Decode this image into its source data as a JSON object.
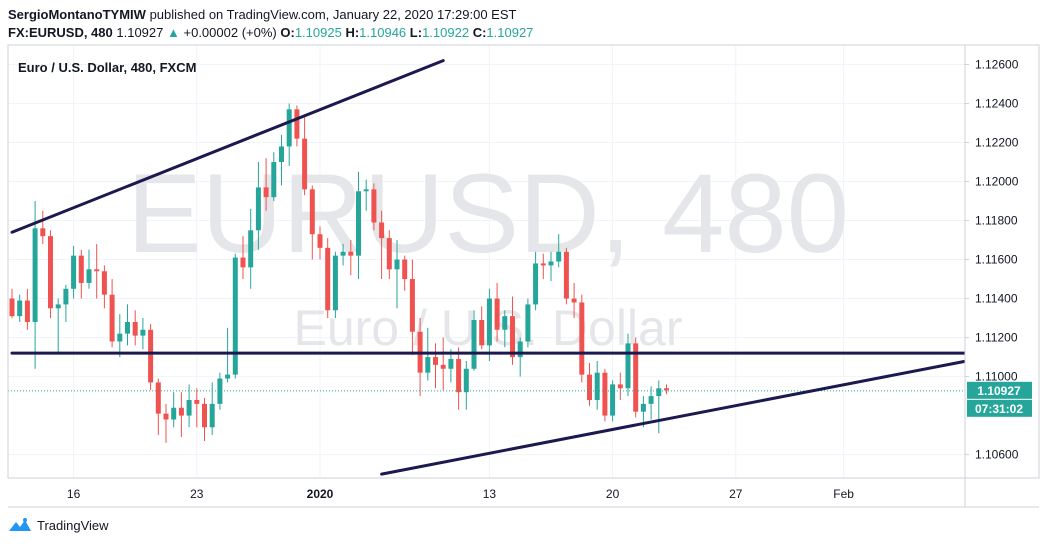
{
  "header": {
    "publisher": "SergioMontanoTYMIW",
    "published_text": "published on TradingView.com, January 22, 2020 17:29:00 EST",
    "symbol": "FX:EURUSD, 480",
    "last": "1.10927",
    "up_arrow": "▲",
    "change": "+0.00002 (+0%)",
    "o_label": "O:",
    "o_value": "1.10925",
    "h_label": "H:",
    "h_value": "1.10946",
    "l_label": "L:",
    "l_value": "1.10922",
    "c_label": "C:",
    "c_value": "1.10927"
  },
  "footer": {
    "brand": "TradingView",
    "logo_icon": "tradingview-logo-icon"
  },
  "colors": {
    "up": "#26a69a",
    "down": "#ef5350",
    "trendline": "#1c1850",
    "grid": "#f0f3fa",
    "axis_text": "#131722",
    "watermark": "#e4e6ea"
  },
  "chart_data": {
    "type": "candlestick",
    "title": "Euro / U.S. Dollar, 480, FXCM",
    "watermark": {
      "line1": "EURUSD, 480",
      "line2": "Euro / U.S. Dollar"
    },
    "y_ticks": [
      "1.12600",
      "1.12400",
      "1.12200",
      "1.12000",
      "1.11800",
      "1.11600",
      "1.11400",
      "1.11200",
      "1.11000",
      "1.10600"
    ],
    "x_ticks": [
      "16",
      "23",
      "2020",
      "13",
      "20",
      "27",
      "Feb"
    ],
    "ylim": [
      1.1048,
      1.127
    ],
    "price_label": "1.10927",
    "countdown_label": "07:31:02",
    "last_price": 1.10927,
    "candles": [
      [
        1.114,
        1.1145,
        1.113,
        1.1131
      ],
      [
        1.1131,
        1.1142,
        1.1128,
        1.1139
      ],
      [
        1.1139,
        1.1145,
        1.1124,
        1.1128
      ],
      [
        1.1128,
        1.119,
        1.1104,
        1.1176
      ],
      [
        1.1176,
        1.1185,
        1.1168,
        1.1172
      ],
      [
        1.1172,
        1.1175,
        1.113,
        1.1135
      ],
      [
        1.1135,
        1.114,
        1.1112,
        1.1137
      ],
      [
        1.1137,
        1.1147,
        1.1128,
        1.1145
      ],
      [
        1.1145,
        1.1167,
        1.114,
        1.1162
      ],
      [
        1.1162,
        1.1165,
        1.114,
        1.1148
      ],
      [
        1.1148,
        1.1165,
        1.1145,
        1.1155
      ],
      [
        1.1155,
        1.1168,
        1.114,
        1.1154
      ],
      [
        1.1154,
        1.1157,
        1.1135,
        1.1142
      ],
      [
        1.1142,
        1.115,
        1.1115,
        1.1118
      ],
      [
        1.1118,
        1.1132,
        1.111,
        1.1122
      ],
      [
        1.1122,
        1.1137,
        1.1116,
        1.1128
      ],
      [
        1.1128,
        1.1134,
        1.1116,
        1.1121
      ],
      [
        1.1121,
        1.113,
        1.1114,
        1.1124
      ],
      [
        1.1124,
        1.1127,
        1.1093,
        1.1097
      ],
      [
        1.1097,
        1.1099,
        1.107,
        1.1081
      ],
      [
        1.1081,
        1.1086,
        1.1066,
        1.1078
      ],
      [
        1.1078,
        1.1092,
        1.1074,
        1.1084
      ],
      [
        1.1084,
        1.1092,
        1.1069,
        1.108
      ],
      [
        1.108,
        1.1096,
        1.1074,
        1.1088
      ],
      [
        1.1088,
        1.1094,
        1.1074,
        1.1086
      ],
      [
        1.1086,
        1.1089,
        1.1067,
        1.1074
      ],
      [
        1.1074,
        1.1097,
        1.107,
        1.1086
      ],
      [
        1.1086,
        1.1102,
        1.1083,
        1.1099
      ],
      [
        1.1099,
        1.1125,
        1.1097,
        1.1101
      ],
      [
        1.1101,
        1.1163,
        1.1099,
        1.1161
      ],
      [
        1.1161,
        1.1172,
        1.115,
        1.1156
      ],
      [
        1.1156,
        1.1186,
        1.1145,
        1.1175
      ],
      [
        1.1175,
        1.121,
        1.1165,
        1.1197
      ],
      [
        1.1197,
        1.1212,
        1.1185,
        1.1192
      ],
      [
        1.1192,
        1.1215,
        1.119,
        1.121
      ],
      [
        1.121,
        1.1224,
        1.1198,
        1.1218
      ],
      [
        1.1218,
        1.124,
        1.1208,
        1.1237
      ],
      [
        1.1237,
        1.1239,
        1.1218,
        1.1222
      ],
      [
        1.1222,
        1.1233,
        1.1193,
        1.1196
      ],
      [
        1.1196,
        1.1198,
        1.116,
        1.1173
      ],
      [
        1.1173,
        1.1177,
        1.116,
        1.1166
      ],
      [
        1.1166,
        1.1171,
        1.113,
        1.1134
      ],
      [
        1.1134,
        1.1164,
        1.113,
        1.1162
      ],
      [
        1.1162,
        1.1168,
        1.1157,
        1.1164
      ],
      [
        1.1164,
        1.117,
        1.1152,
        1.1162
      ],
      [
        1.1162,
        1.1205,
        1.115,
        1.1195
      ],
      [
        1.1195,
        1.1201,
        1.1185,
        1.1196
      ],
      [
        1.1196,
        1.1199,
        1.1175,
        1.1179
      ],
      [
        1.1179,
        1.1185,
        1.115,
        1.1171
      ],
      [
        1.1171,
        1.1175,
        1.115,
        1.1155
      ],
      [
        1.1155,
        1.117,
        1.1135,
        1.116
      ],
      [
        1.116,
        1.1162,
        1.1144,
        1.115
      ],
      [
        1.115,
        1.116,
        1.1111,
        1.1123
      ],
      [
        1.1123,
        1.113,
        1.109,
        1.1102
      ],
      [
        1.1102,
        1.1125,
        1.1098,
        1.111
      ],
      [
        1.111,
        1.1117,
        1.1094,
        1.1106
      ],
      [
        1.1106,
        1.112,
        1.1093,
        1.1104
      ],
      [
        1.1104,
        1.1114,
        1.1097,
        1.1109
      ],
      [
        1.1109,
        1.1115,
        1.1083,
        1.1092
      ],
      [
        1.1092,
        1.1108,
        1.1083,
        1.1104
      ],
      [
        1.1104,
        1.1134,
        1.1103,
        1.1129
      ],
      [
        1.1129,
        1.1136,
        1.1114,
        1.1116
      ],
      [
        1.1116,
        1.1145,
        1.1108,
        1.114
      ],
      [
        1.114,
        1.1148,
        1.1118,
        1.1124
      ],
      [
        1.1124,
        1.1134,
        1.1115,
        1.1131
      ],
      [
        1.1131,
        1.1141,
        1.1106,
        1.111
      ],
      [
        1.111,
        1.112,
        1.11,
        1.1118
      ],
      [
        1.1118,
        1.114,
        1.1115,
        1.1137
      ],
      [
        1.1137,
        1.1164,
        1.1134,
        1.1158
      ],
      [
        1.1158,
        1.1163,
        1.115,
        1.1157
      ],
      [
        1.1157,
        1.1164,
        1.1149,
        1.1159
      ],
      [
        1.1159,
        1.1173,
        1.1156,
        1.1164
      ],
      [
        1.1164,
        1.1166,
        1.1137,
        1.114
      ],
      [
        1.114,
        1.1148,
        1.113,
        1.1138
      ],
      [
        1.1138,
        1.1142,
        1.1097,
        1.1101
      ],
      [
        1.1101,
        1.1107,
        1.1085,
        1.1088
      ],
      [
        1.1088,
        1.1108,
        1.1083,
        1.1102
      ],
      [
        1.1102,
        1.1104,
        1.1077,
        1.108
      ],
      [
        1.108,
        1.1098,
        1.1077,
        1.1096
      ],
      [
        1.1096,
        1.1102,
        1.1088,
        1.1094
      ],
      [
        1.1094,
        1.1122,
        1.109,
        1.1117
      ],
      [
        1.1117,
        1.112,
        1.1079,
        1.1082
      ],
      [
        1.1082,
        1.109,
        1.1074,
        1.1086
      ],
      [
        1.1086,
        1.1095,
        1.1078,
        1.109
      ],
      [
        1.109,
        1.1098,
        1.1071,
        1.1094
      ],
      [
        1.1094,
        1.1096,
        1.1091,
        1.1093
      ]
    ],
    "trendlines": [
      {
        "name": "upper-channel",
        "from": [
          0,
          1.1174
        ],
        "to": [
          56,
          1.1262
        ]
      },
      {
        "name": "horizontal-resistance",
        "from": [
          0,
          1.1112
        ],
        "to": [
          124,
          1.1112
        ]
      },
      {
        "name": "rising-support",
        "from": [
          48,
          1.105
        ],
        "to": [
          124,
          1.1108
        ]
      }
    ]
  }
}
